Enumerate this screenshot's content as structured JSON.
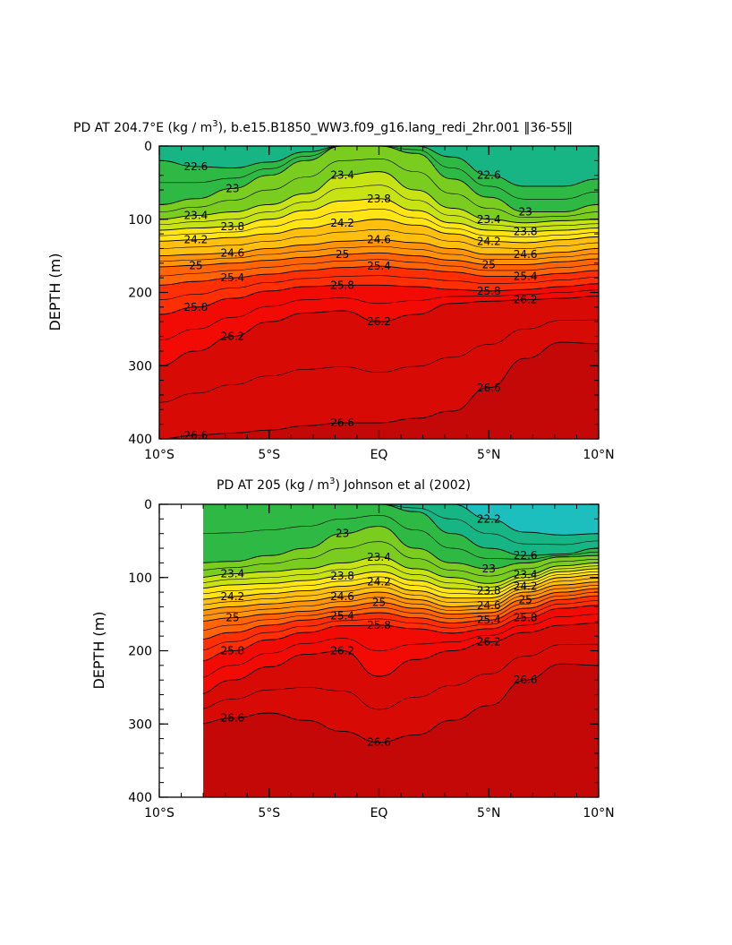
{
  "chart_data": [
    {
      "type": "contour",
      "title": "PD AT 204.7°E (kg / m",
      "title_sup": "3",
      "title_rest": "), b.e15.B1850_WW3.f09_g16.lang_redi_2hr.001 ‖36-55‖",
      "xlabel": "",
      "ylabel": "DEPTH (m)",
      "x_ticks": [
        "10°S",
        "5°S",
        "EQ",
        "5°N",
        "10°N"
      ],
      "y_ticks": [
        "0",
        "100",
        "200",
        "300",
        "400"
      ],
      "xlim": [
        -10,
        10
      ],
      "ylim": [
        400,
        0
      ],
      "colorscale": [
        "#7a1fd6",
        "#0014f0",
        "#0a5cf5",
        "#1f8cf7",
        "#2db8fb",
        "#35dcfd",
        "#1ac8dc",
        "#12b8a6",
        "#19b36a",
        "#3dbb2a",
        "#8fd61c",
        "#d8e814",
        "#ffe813",
        "#ffc10d",
        "#ff9a0a",
        "#ff6e08",
        "#ff3d06",
        "#f40c04",
        "#d90a06",
        "#c40808"
      ],
      "contour_labels": [
        "22.6",
        "23",
        "23.4",
        "23.8",
        "24.2",
        "24.6",
        "25",
        "25.4",
        "25.8",
        "26.2",
        "26.6"
      ],
      "depth_of_levels": [
        {
          "level": 22.6,
          "depths": [
            20,
            28,
            30,
            22,
            8,
            0,
            0,
            0,
            15,
            40,
            55,
            55,
            45
          ]
        },
        {
          "level": 23,
          "depths": [
            80,
            72,
            58,
            40,
            20,
            0,
            0,
            10,
            45,
            70,
            90,
            90,
            80
          ]
        },
        {
          "level": 23.4,
          "depths": [
            100,
            95,
            90,
            80,
            65,
            40,
            35,
            60,
            85,
            100,
            105,
            102,
            100
          ]
        },
        {
          "level": 23.8,
          "depths": [
            115,
            112,
            110,
            100,
            88,
            75,
            72,
            88,
            105,
            115,
            117,
            115,
            112
          ]
        },
        {
          "level": 24.2,
          "depths": [
            130,
            128,
            125,
            120,
            112,
            105,
            100,
            108,
            120,
            130,
            132,
            128,
            124
          ]
        },
        {
          "level": 24.6,
          "depths": [
            150,
            148,
            146,
            140,
            135,
            130,
            128,
            132,
            140,
            148,
            148,
            145,
            140
          ]
        },
        {
          "level": 25,
          "depths": [
            165,
            163,
            160,
            156,
            152,
            148,
            146,
            150,
            156,
            162,
            162,
            158,
            154
          ]
        },
        {
          "level": 25.4,
          "depths": [
            190,
            185,
            180,
            175,
            170,
            166,
            164,
            168,
            172,
            178,
            178,
            174,
            170
          ]
        },
        {
          "level": 25.8,
          "depths": [
            230,
            220,
            208,
            198,
            192,
            190,
            190,
            192,
            196,
            198,
            196,
            192,
            188
          ]
        },
        {
          "level": 26.2,
          "depths": [
            300,
            280,
            260,
            240,
            228,
            225,
            240,
            230,
            215,
            212,
            210,
            208,
            205
          ]
        },
        {
          "level": 26.6,
          "depths": [
            400,
            395,
            392,
            388,
            382,
            378,
            378,
            372,
            362,
            330,
            290,
            268,
            270
          ]
        }
      ]
    },
    {
      "type": "contour",
      "title": "PD AT 205 (kg / m",
      "title_sup": "3",
      "title_rest": ") Johnson et al (2002)",
      "xlabel": "",
      "ylabel": "DEPTH (m)",
      "x_ticks": [
        "10°S",
        "5°S",
        "EQ",
        "5°N",
        "10°N"
      ],
      "y_ticks": [
        "0",
        "100",
        "200",
        "300",
        "400"
      ],
      "xlim": [
        -10,
        10
      ],
      "ylim": [
        400,
        0
      ],
      "data_xstart": -8,
      "contour_labels": [
        "22.2",
        "22.6",
        "23",
        "23.4",
        "23.8",
        "24.2",
        "24.6",
        "25",
        "25.4",
        "25.8",
        "26.2",
        "26.6"
      ],
      "depth_of_levels": [
        {
          "level": 22.2,
          "depths": [
            null,
            null,
            null,
            null,
            null,
            null,
            0,
            0,
            0,
            20,
            38,
            42,
            40
          ]
        },
        {
          "level": 22.6,
          "depths": [
            null,
            0,
            0,
            0,
            0,
            0,
            0,
            10,
            40,
            60,
            70,
            68,
            60
          ]
        },
        {
          "level": 23,
          "depths": [
            null,
            80,
            78,
            70,
            60,
            40,
            30,
            60,
            80,
            88,
            80,
            72,
            70
          ]
        },
        {
          "level": 23.4,
          "depths": [
            null,
            100,
            95,
            92,
            88,
            80,
            72,
            88,
            100,
            108,
            96,
            84,
            80
          ]
        },
        {
          "level": 23.8,
          "depths": [
            null,
            115,
            110,
            108,
            104,
            98,
            92,
            104,
            115,
            118,
            104,
            92,
            88
          ]
        },
        {
          "level": 24.2,
          "depths": [
            null,
            130,
            126,
            122,
            118,
            112,
            106,
            118,
            128,
            128,
            112,
            100,
            96
          ]
        },
        {
          "level": 24.6,
          "depths": [
            null,
            145,
            140,
            136,
            132,
            126,
            120,
            130,
            140,
            138,
            120,
            110,
            106
          ]
        },
        {
          "level": 25,
          "depths": [
            null,
            160,
            155,
            150,
            146,
            140,
            134,
            142,
            150,
            148,
            130,
            120,
            115
          ]
        },
        {
          "level": 25.4,
          "depths": [
            null,
            185,
            175,
            165,
            158,
            152,
            148,
            155,
            162,
            158,
            142,
            130,
            125
          ]
        },
        {
          "level": 25.8,
          "depths": [
            null,
            215,
            200,
            185,
            175,
            166,
            165,
            170,
            176,
            170,
            155,
            142,
            138
          ]
        },
        {
          "level": 26.2,
          "depths": [
            null,
            260,
            240,
            222,
            205,
            200,
            235,
            212,
            200,
            188,
            175,
            165,
            162
          ]
        },
        {
          "level": 26.6,
          "depths": [
            null,
            300,
            292,
            285,
            295,
            310,
            325,
            315,
            295,
            275,
            240,
            218,
            220
          ]
        }
      ]
    }
  ]
}
